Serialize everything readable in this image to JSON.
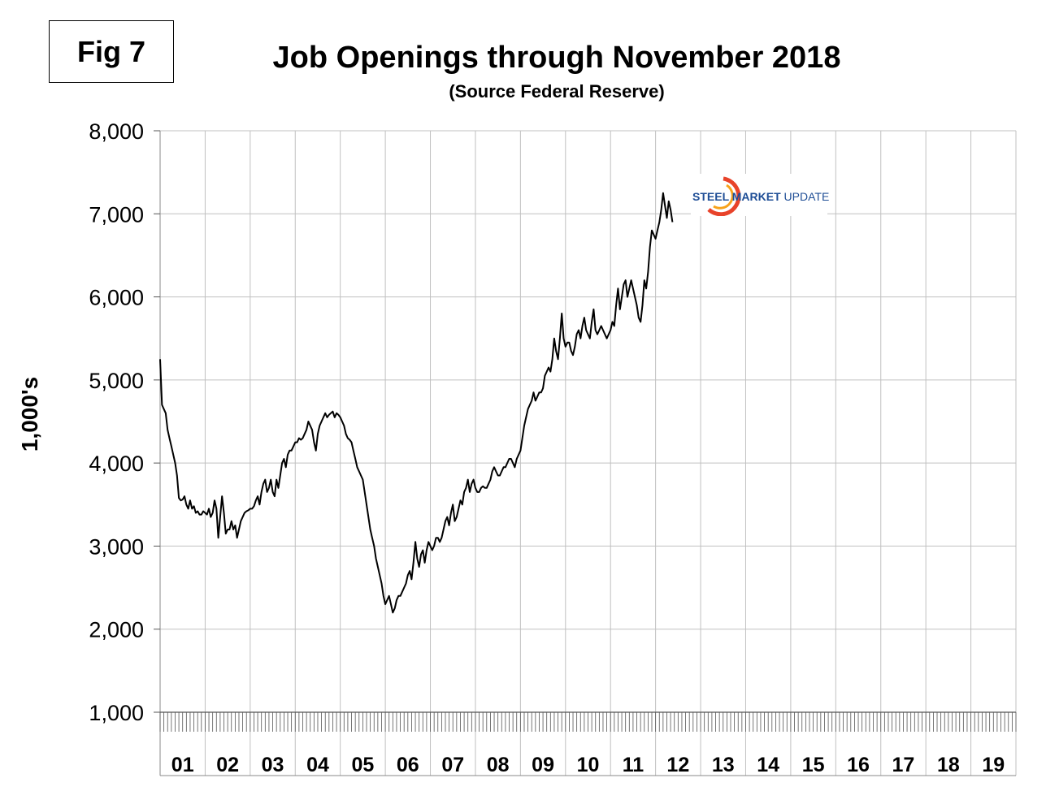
{
  "figure_label": "Fig 7",
  "logo": {
    "bold": "STEEL MARKET",
    "rest": " UPDATE",
    "color": "#1f4e96",
    "accent": "#e8432a"
  },
  "colors": {
    "line": "#000000",
    "grid": "#c0c0c0",
    "background": "#ffffff"
  },
  "chart_data": {
    "type": "line",
    "title": "Job Openings through November 2018",
    "subtitle": "(Source Federal Reserve)",
    "ylabel": "1,000's",
    "xlabel": "",
    "ylim": [
      1000,
      8000
    ],
    "yticks": [
      1000,
      2000,
      3000,
      4000,
      5000,
      6000,
      7000,
      8000
    ],
    "ytick_labels": [
      "1,000",
      "2,000",
      "3,000",
      "4,000",
      "5,000",
      "6,000",
      "7,000",
      "8,000"
    ],
    "categories": [
      "01",
      "02",
      "03",
      "04",
      "05",
      "06",
      "07",
      "08",
      "09",
      "10",
      "11",
      "12",
      "13",
      "14",
      "15",
      "16",
      "17",
      "18",
      "19"
    ],
    "x_unit": "months since start of 2001",
    "grid": true,
    "legend": "none",
    "series": [
      {
        "points": [
          [
            0,
            5250
          ],
          [
            0.5,
            4700
          ],
          [
            1,
            4650
          ],
          [
            1.5,
            4600
          ],
          [
            2,
            4400
          ],
          [
            2.5,
            4300
          ],
          [
            3,
            4200
          ],
          [
            3.5,
            4100
          ],
          [
            4,
            4000
          ],
          [
            4.5,
            3850
          ],
          [
            5,
            3580
          ],
          [
            5.5,
            3550
          ],
          [
            6,
            3560
          ],
          [
            6.5,
            3600
          ],
          [
            7,
            3500
          ],
          [
            7.5,
            3450
          ],
          [
            8,
            3550
          ],
          [
            8.5,
            3450
          ],
          [
            9,
            3480
          ],
          [
            9.5,
            3400
          ],
          [
            10,
            3420
          ],
          [
            10.5,
            3380
          ],
          [
            11,
            3380
          ],
          [
            11.5,
            3420
          ],
          [
            12,
            3400
          ],
          [
            12.5,
            3380
          ],
          [
            13,
            3450
          ],
          [
            13.5,
            3350
          ],
          [
            14,
            3400
          ],
          [
            14.5,
            3550
          ],
          [
            15,
            3450
          ],
          [
            15.5,
            3100
          ],
          [
            16,
            3350
          ],
          [
            16.5,
            3600
          ],
          [
            17,
            3400
          ],
          [
            17.5,
            3150
          ],
          [
            18,
            3200
          ],
          [
            18.5,
            3200
          ],
          [
            19,
            3300
          ],
          [
            19.5,
            3200
          ],
          [
            20,
            3250
          ],
          [
            20.5,
            3100
          ],
          [
            21,
            3200
          ],
          [
            21.5,
            3300
          ],
          [
            22,
            3350
          ],
          [
            22.5,
            3400
          ],
          [
            23,
            3420
          ],
          [
            23.5,
            3430
          ],
          [
            24,
            3450
          ],
          [
            24.5,
            3450
          ],
          [
            25,
            3480
          ],
          [
            25.5,
            3550
          ],
          [
            26,
            3600
          ],
          [
            26.5,
            3500
          ],
          [
            27,
            3650
          ],
          [
            27.5,
            3750
          ],
          [
            28,
            3800
          ],
          [
            28.5,
            3650
          ],
          [
            29,
            3700
          ],
          [
            29.5,
            3800
          ],
          [
            30,
            3650
          ],
          [
            30.5,
            3600
          ],
          [
            31,
            3800
          ],
          [
            31.5,
            3700
          ],
          [
            32,
            3850
          ],
          [
            32.5,
            4000
          ],
          [
            33,
            4050
          ],
          [
            33.5,
            3950
          ],
          [
            34,
            4100
          ],
          [
            34.5,
            4150
          ],
          [
            35,
            4150
          ],
          [
            35.5,
            4200
          ],
          [
            36,
            4250
          ],
          [
            36.5,
            4250
          ],
          [
            37,
            4300
          ],
          [
            37.5,
            4280
          ],
          [
            38,
            4300
          ],
          [
            38.5,
            4350
          ],
          [
            39,
            4400
          ],
          [
            39.5,
            4500
          ],
          [
            40,
            4450
          ],
          [
            40.5,
            4400
          ],
          [
            41,
            4250
          ],
          [
            41.5,
            4150
          ],
          [
            42,
            4350
          ],
          [
            42.5,
            4450
          ],
          [
            43,
            4500
          ],
          [
            43.5,
            4550
          ],
          [
            44,
            4600
          ],
          [
            44.5,
            4550
          ],
          [
            45,
            4580
          ],
          [
            45.5,
            4600
          ],
          [
            46,
            4620
          ],
          [
            46.5,
            4550
          ],
          [
            47,
            4600
          ],
          [
            47.5,
            4580
          ],
          [
            48,
            4550
          ],
          [
            48.5,
            4500
          ],
          [
            49,
            4450
          ],
          [
            49.5,
            4350
          ],
          [
            50,
            4300
          ],
          [
            50.5,
            4280
          ],
          [
            51,
            4250
          ],
          [
            51.5,
            4150
          ],
          [
            52,
            4050
          ],
          [
            52.5,
            3950
          ],
          [
            53,
            3900
          ],
          [
            53.5,
            3850
          ],
          [
            54,
            3800
          ],
          [
            54.5,
            3650
          ],
          [
            55,
            3500
          ],
          [
            55.5,
            3350
          ],
          [
            56,
            3200
          ],
          [
            56.5,
            3100
          ],
          [
            57,
            3000
          ],
          [
            57.5,
            2850
          ],
          [
            58,
            2750
          ],
          [
            58.5,
            2650
          ],
          [
            59,
            2550
          ],
          [
            59.5,
            2400
          ],
          [
            60,
            2300
          ],
          [
            60.5,
            2350
          ],
          [
            61,
            2400
          ],
          [
            61.5,
            2300
          ],
          [
            62,
            2200
          ],
          [
            62.5,
            2250
          ],
          [
            63,
            2350
          ],
          [
            63.5,
            2400
          ],
          [
            64,
            2400
          ],
          [
            64.5,
            2450
          ],
          [
            65,
            2500
          ],
          [
            65.5,
            2550
          ],
          [
            66,
            2650
          ],
          [
            66.5,
            2700
          ],
          [
            67,
            2600
          ],
          [
            67.5,
            2800
          ],
          [
            68,
            3050
          ],
          [
            68.5,
            2850
          ],
          [
            69,
            2750
          ],
          [
            69.5,
            2900
          ],
          [
            70,
            2950
          ],
          [
            70.5,
            2800
          ],
          [
            71,
            2950
          ],
          [
            71.5,
            3050
          ],
          [
            72,
            3000
          ],
          [
            72.5,
            2950
          ],
          [
            73,
            3000
          ],
          [
            73.5,
            3100
          ],
          [
            74,
            3100
          ],
          [
            74.5,
            3050
          ],
          [
            75,
            3100
          ],
          [
            75.5,
            3200
          ],
          [
            76,
            3300
          ],
          [
            76.5,
            3350
          ],
          [
            77,
            3250
          ],
          [
            77.5,
            3400
          ],
          [
            78,
            3500
          ],
          [
            78.5,
            3300
          ],
          [
            79,
            3350
          ],
          [
            79.5,
            3450
          ],
          [
            80,
            3550
          ],
          [
            80.5,
            3500
          ],
          [
            81,
            3650
          ],
          [
            81.5,
            3700
          ],
          [
            82,
            3800
          ],
          [
            82.5,
            3650
          ],
          [
            83,
            3750
          ],
          [
            83.5,
            3800
          ],
          [
            84,
            3700
          ],
          [
            84.5,
            3650
          ],
          [
            85,
            3650
          ],
          [
            85.5,
            3700
          ],
          [
            86,
            3720
          ],
          [
            86.5,
            3700
          ],
          [
            87,
            3700
          ],
          [
            87.5,
            3750
          ],
          [
            88,
            3800
          ],
          [
            88.5,
            3900
          ],
          [
            89,
            3950
          ],
          [
            89.5,
            3900
          ],
          [
            90,
            3850
          ],
          [
            90.5,
            3850
          ],
          [
            91,
            3900
          ],
          [
            91.5,
            3950
          ],
          [
            92,
            3950
          ],
          [
            92.5,
            4000
          ],
          [
            93,
            4050
          ],
          [
            93.5,
            4050
          ],
          [
            94,
            4000
          ],
          [
            94.5,
            3950
          ],
          [
            95,
            4050
          ],
          [
            95.5,
            4100
          ],
          [
            96,
            4150
          ],
          [
            96.5,
            4300
          ],
          [
            97,
            4450
          ],
          [
            97.5,
            4550
          ],
          [
            98,
            4650
          ],
          [
            98.5,
            4700
          ],
          [
            99,
            4750
          ],
          [
            99.5,
            4850
          ],
          [
            100,
            4750
          ],
          [
            100.5,
            4800
          ],
          [
            101,
            4850
          ],
          [
            101.5,
            4850
          ],
          [
            102,
            4900
          ],
          [
            102.5,
            5050
          ],
          [
            103,
            5100
          ],
          [
            103.5,
            5150
          ],
          [
            104,
            5100
          ],
          [
            104.5,
            5250
          ],
          [
            105,
            5500
          ],
          [
            105.5,
            5350
          ],
          [
            106,
            5250
          ],
          [
            106.5,
            5500
          ],
          [
            107,
            5800
          ],
          [
            107.5,
            5500
          ],
          [
            108,
            5400
          ],
          [
            108.5,
            5450
          ],
          [
            109,
            5450
          ],
          [
            109.5,
            5350
          ],
          [
            110,
            5300
          ],
          [
            110.5,
            5400
          ],
          [
            111,
            5550
          ],
          [
            111.5,
            5600
          ],
          [
            112,
            5500
          ],
          [
            112.5,
            5650
          ],
          [
            113,
            5750
          ],
          [
            113.5,
            5600
          ],
          [
            114,
            5550
          ],
          [
            114.5,
            5500
          ],
          [
            115,
            5700
          ],
          [
            115.5,
            5850
          ],
          [
            116,
            5600
          ],
          [
            116.5,
            5550
          ],
          [
            117,
            5600
          ],
          [
            117.5,
            5650
          ],
          [
            118,
            5600
          ],
          [
            118.5,
            5550
          ],
          [
            119,
            5500
          ],
          [
            119.5,
            5550
          ],
          [
            120,
            5600
          ],
          [
            120.5,
            5700
          ],
          [
            121,
            5650
          ],
          [
            121.5,
            5900
          ],
          [
            122,
            6100
          ],
          [
            122.5,
            5850
          ],
          [
            123,
            6000
          ],
          [
            123.5,
            6150
          ],
          [
            124,
            6200
          ],
          [
            124.5,
            6000
          ],
          [
            125,
            6100
          ],
          [
            125.5,
            6200
          ],
          [
            126,
            6100
          ],
          [
            126.5,
            6000
          ],
          [
            127,
            5900
          ],
          [
            127.5,
            5750
          ],
          [
            128,
            5700
          ],
          [
            128.5,
            5900
          ],
          [
            129,
            6200
          ],
          [
            129.5,
            6100
          ],
          [
            130,
            6300
          ],
          [
            130.5,
            6600
          ],
          [
            131,
            6800
          ],
          [
            131.5,
            6750
          ],
          [
            132,
            6700
          ],
          [
            132.5,
            6800
          ],
          [
            133,
            6900
          ],
          [
            133.5,
            7050
          ],
          [
            134,
            7250
          ],
          [
            134.5,
            7100
          ],
          [
            135,
            6950
          ],
          [
            135.5,
            7150
          ],
          [
            136,
            7050
          ],
          [
            136.5,
            6900
          ]
        ]
      }
    ]
  }
}
